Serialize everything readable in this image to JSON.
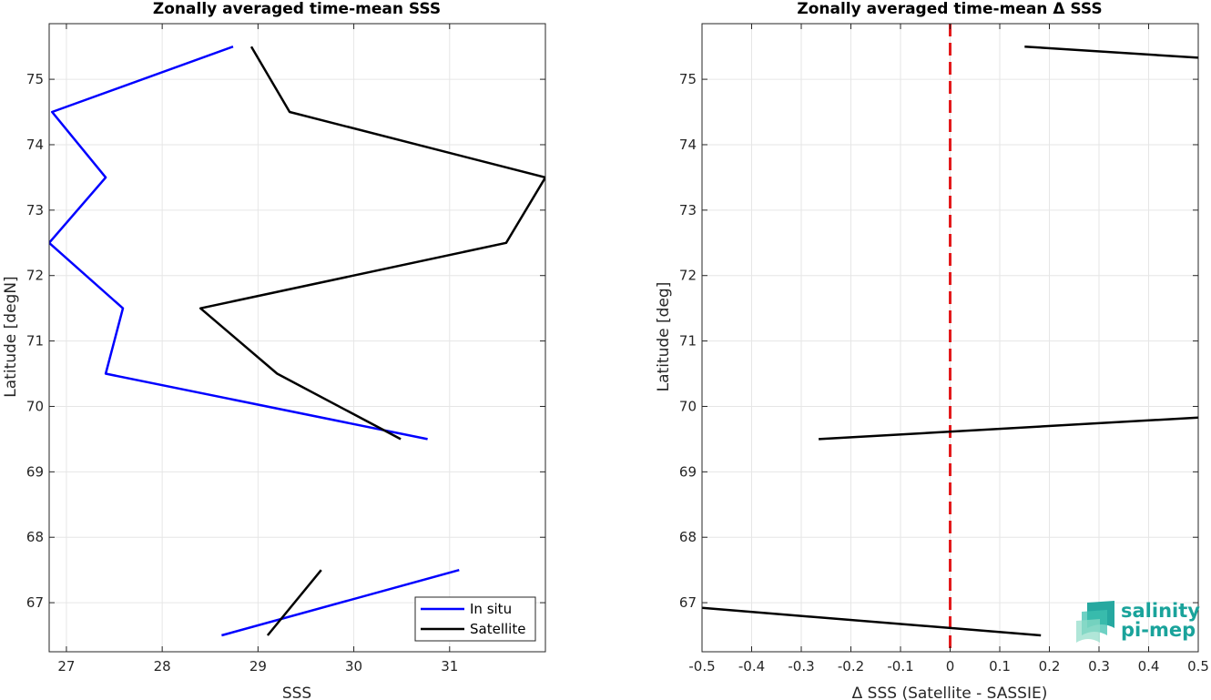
{
  "chart_data": [
    {
      "type": "line",
      "title": "Zonally averaged time-mean SSS",
      "xlabel": "SSS",
      "ylabel": "Latitude [degN]",
      "xlim": [
        26.82,
        32.0
      ],
      "ylim": [
        66.25,
        75.85
      ],
      "xticks": [
        27,
        28,
        29,
        30,
        31
      ],
      "yticks": [
        67,
        68,
        69,
        70,
        71,
        72,
        73,
        74,
        75
      ],
      "grid": true,
      "legend": "bottom-right",
      "series": [
        {
          "name": "In situ",
          "color": "#0000ff",
          "segments": [
            [
              [
                28.74,
                75.5
              ],
              [
                26.85,
                74.5
              ],
              [
                27.41,
                73.5
              ],
              [
                26.82,
                72.5
              ],
              [
                27.59,
                71.5
              ],
              [
                27.41,
                70.5
              ],
              [
                30.77,
                69.5
              ]
            ],
            [
              [
                28.62,
                66.5
              ],
              [
                31.1,
                67.5
              ]
            ]
          ]
        },
        {
          "name": "Satellite",
          "color": "#000000",
          "segments": [
            [
              [
                28.93,
                75.5
              ],
              [
                29.33,
                74.5
              ],
              [
                32.0,
                73.5
              ],
              [
                31.59,
                72.5
              ],
              [
                28.4,
                71.5
              ],
              [
                29.2,
                70.5
              ],
              [
                30.49,
                69.5
              ]
            ],
            [
              [
                29.1,
                66.5
              ],
              [
                29.66,
                67.5
              ]
            ]
          ]
        }
      ]
    },
    {
      "type": "line",
      "title": "Zonally averaged time-mean Δ SSS",
      "xlabel": "Δ SSS (Satellite - SASSIE)",
      "ylabel": "Latitude [deg]",
      "xlim": [
        -0.5,
        0.5
      ],
      "ylim": [
        66.25,
        75.85
      ],
      "xticks": [
        -0.5,
        -0.4,
        -0.3,
        -0.2,
        -0.1,
        0,
        0.1,
        0.2,
        0.3,
        0.4,
        0.5
      ],
      "yticks": [
        67,
        68,
        69,
        70,
        71,
        72,
        73,
        74,
        75
      ],
      "grid": true,
      "zero_line": {
        "x": 0,
        "color": "#e31a1c",
        "style": "dashed"
      },
      "series": [
        {
          "color": "#000000",
          "segments": [
            [
              [
                0.15,
                75.5
              ],
              [
                0.5,
                75.33
              ]
            ],
            [
              [
                -0.265,
                69.5
              ],
              [
                0.5,
                69.83
              ]
            ],
            [
              [
                -0.5,
                66.92
              ],
              [
                0.183,
                66.5
              ]
            ]
          ]
        }
      ]
    }
  ],
  "logo": {
    "line1": "salinity",
    "line2": "pi-mep"
  }
}
